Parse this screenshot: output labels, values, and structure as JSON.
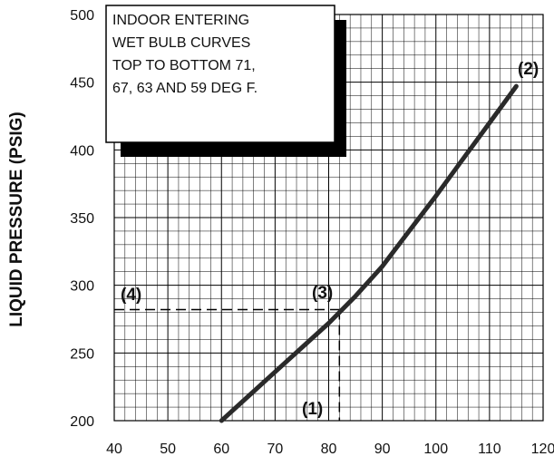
{
  "chart_data": {
    "type": "line",
    "ylabel": "LIQUID PRESSURE (PSIG)",
    "xlabel": "",
    "xlim": [
      40,
      120
    ],
    "ylim": [
      200,
      500
    ],
    "x_ticks": [
      "40",
      "50",
      "60",
      "70",
      "80",
      "90",
      "100",
      "110",
      "120"
    ],
    "y_ticks": [
      "200",
      "250",
      "300",
      "350",
      "400",
      "450",
      "500"
    ],
    "grid": true,
    "series": [
      {
        "x": [
          60,
          65,
          70,
          75,
          80,
          85,
          90,
          95,
          100,
          105,
          110,
          115
        ],
        "y": [
          200,
          218,
          236,
          254,
          272,
          292,
          314,
          340,
          366,
          393,
          420,
          447
        ]
      }
    ],
    "reference_point": {
      "x": 82,
      "y": 282
    },
    "callouts": [
      "(1)",
      "(2)",
      "(3)",
      "(4)"
    ],
    "note": {
      "lines": [
        "INDOOR ENTERING",
        "WET BULB CURVES",
        "TOP TO BOTTOM 71,",
        "67, 63 AND 59 DEG F."
      ]
    },
    "colors": {
      "curve": "#2a2a2a",
      "grid": "#000000",
      "note_shadow": "#000000"
    }
  }
}
